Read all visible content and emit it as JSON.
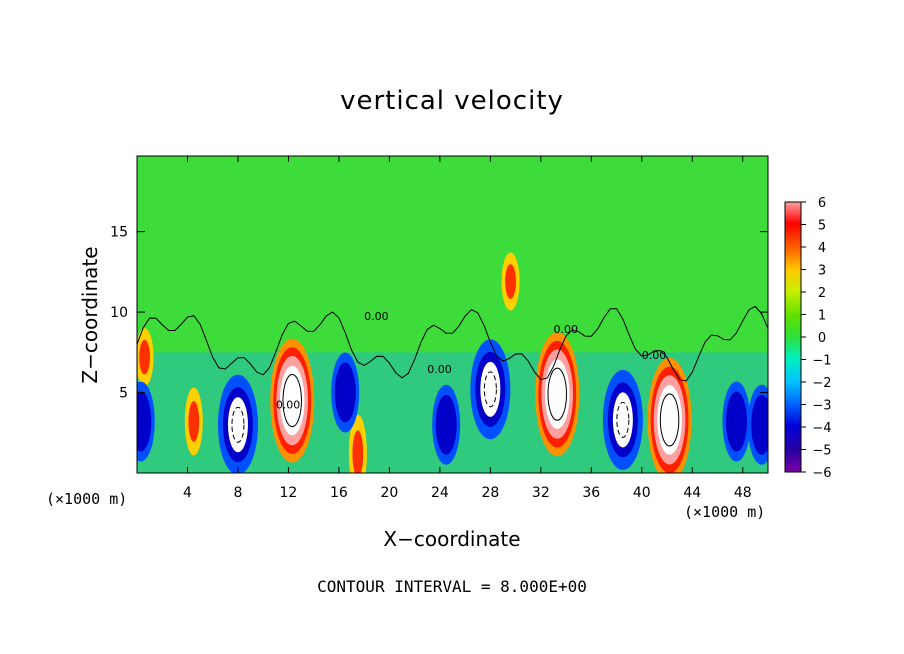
{
  "chart_data": {
    "type": "heatmap",
    "title": "vertical velocity",
    "xlabel": "X−coordinate",
    "ylabel": "Z−coordinate",
    "x_unit_label": "(×1000 m)",
    "x_ticks": [
      "4",
      "8",
      "12",
      "16",
      "20",
      "24",
      "28",
      "32",
      "36",
      "40",
      "44",
      "48"
    ],
    "y_ticks": [
      "5",
      "10",
      "15"
    ],
    "xlim": [
      0,
      50
    ],
    "ylim": [
      0,
      19.7
    ],
    "colorbar": {
      "ticks": [
        "6",
        "5",
        "4",
        "3",
        "2",
        "1",
        "0",
        "−1",
        "−2",
        "−3",
        "−4",
        "−5",
        "−6"
      ],
      "range": [
        -6,
        6
      ]
    },
    "contour_label": "0.00",
    "contour_note": "CONTOUR INTERVAL = 8.000E+00",
    "updrafts": [
      {
        "x": 12.3,
        "z": 4.5,
        "peak": 16
      },
      {
        "x": 33.3,
        "z": 4.9,
        "peak": 16
      },
      {
        "x": 42.2,
        "z": 3.3,
        "peak": 14
      },
      {
        "x": 4.5,
        "z": 3.2,
        "peak": 4
      },
      {
        "x": 17.5,
        "z": 1.2,
        "peak": 5
      },
      {
        "x": 29.6,
        "z": 11.9,
        "peak": 3
      },
      {
        "x": 0.6,
        "z": 7.2,
        "peak": 3
      }
    ],
    "downdrafts": [
      {
        "x": 8.0,
        "z": 3.0,
        "peak": -12
      },
      {
        "x": 38.5,
        "z": 3.3,
        "peak": -12
      },
      {
        "x": 28.0,
        "z": 5.2,
        "peak": -11
      },
      {
        "x": 0.3,
        "z": 3.2,
        "peak": -9
      },
      {
        "x": 16.5,
        "z": 5.0,
        "peak": -5
      },
      {
        "x": 24.5,
        "z": 3.0,
        "peak": -5
      },
      {
        "x": 47.5,
        "z": 3.2,
        "peak": -6
      },
      {
        "x": 49.5,
        "z": 3.0,
        "peak": -7
      }
    ]
  }
}
